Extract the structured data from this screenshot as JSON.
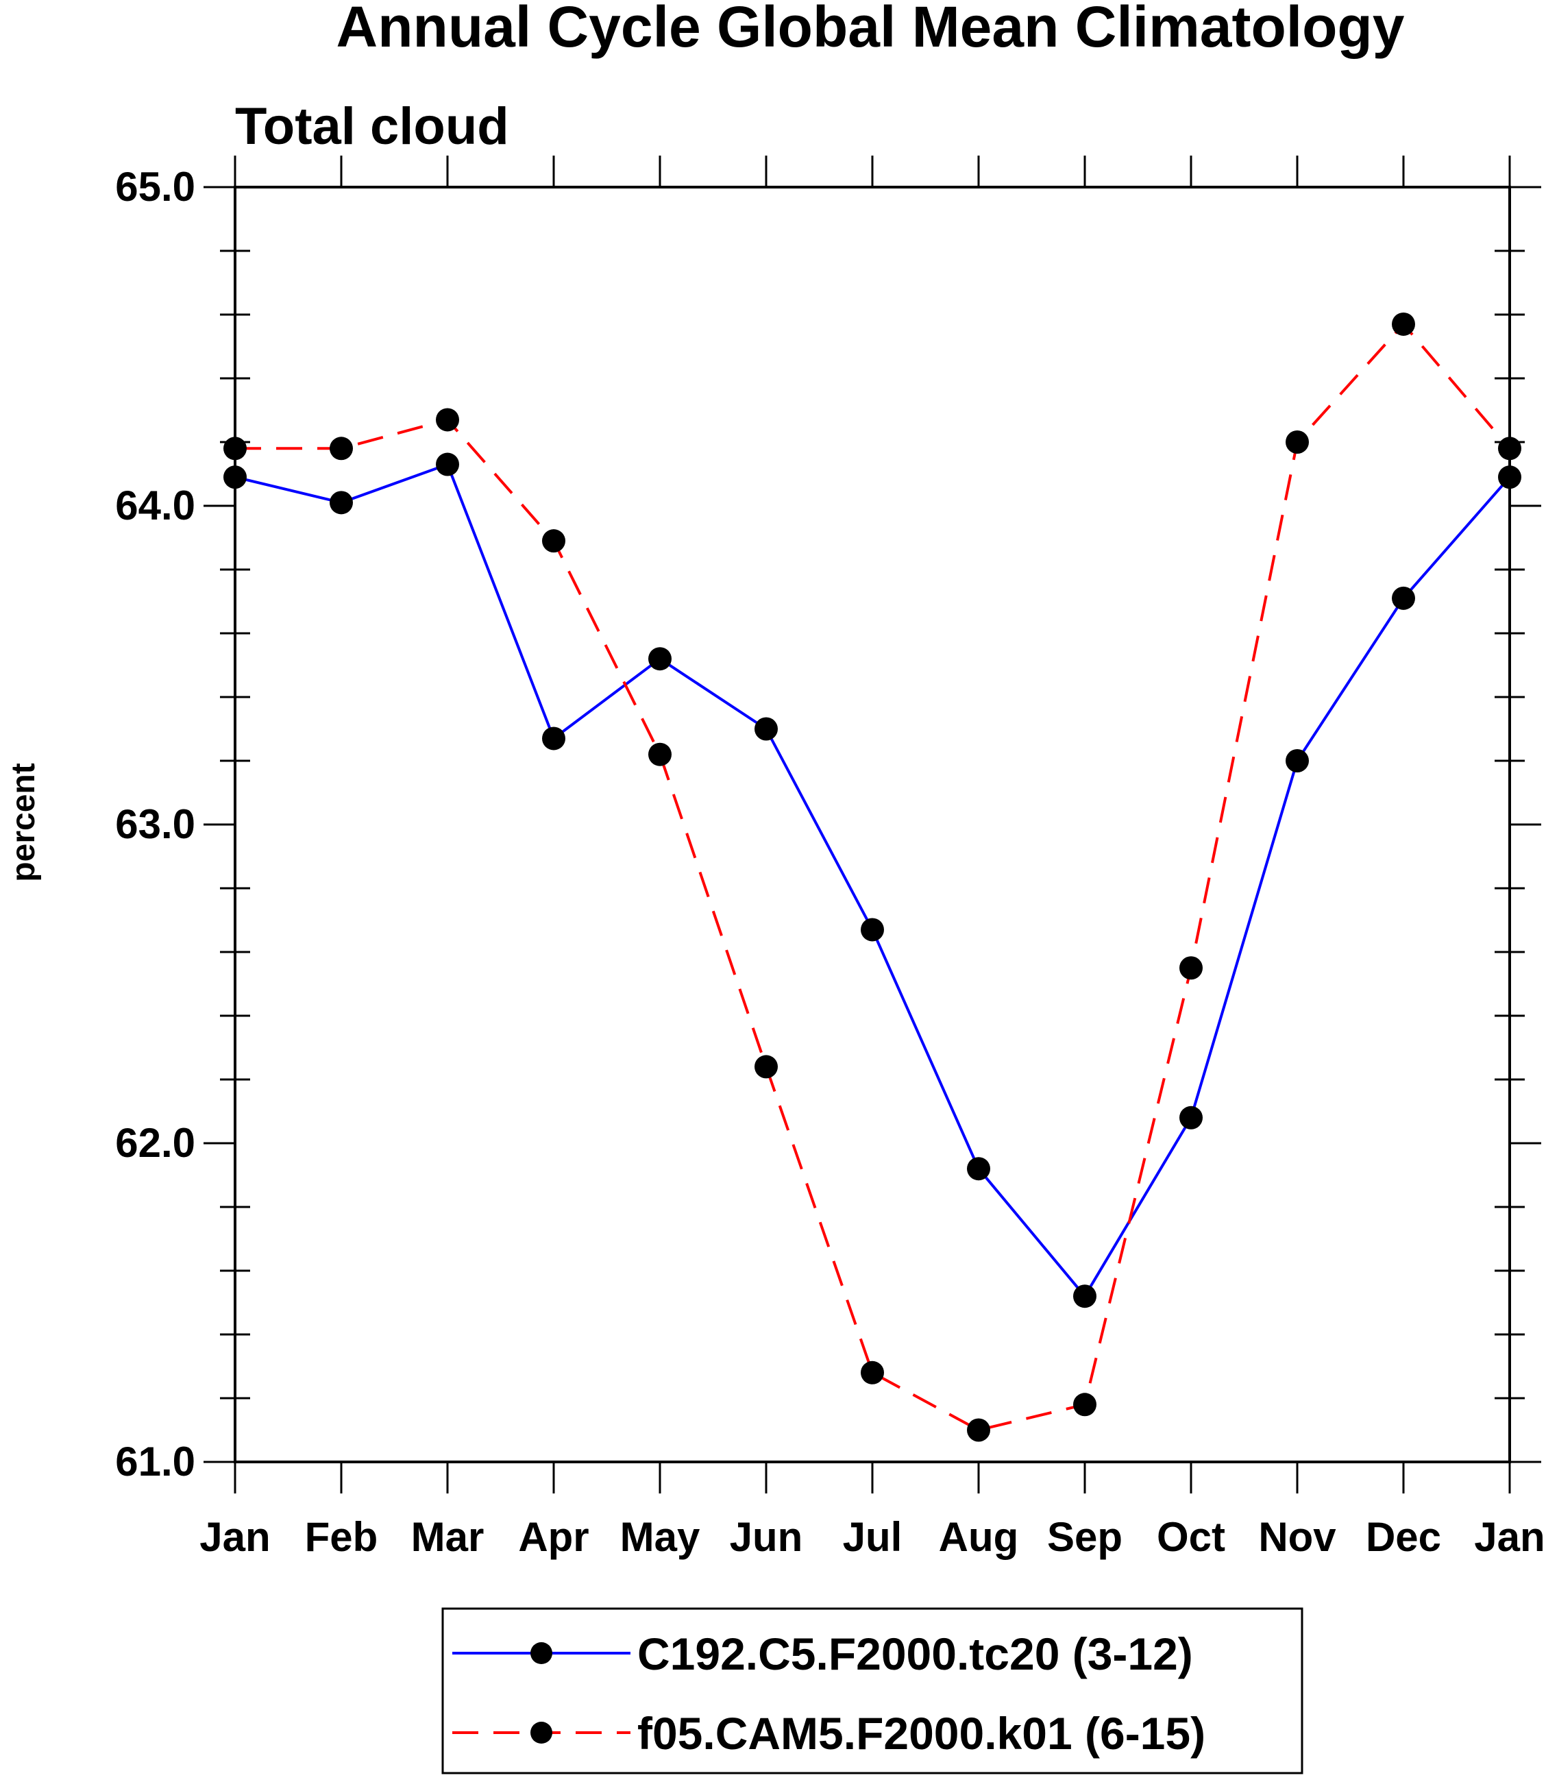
{
  "chart_data": {
    "type": "line",
    "title": "Annual Cycle Global Mean Climatology",
    "subtitle": "Total cloud",
    "xlabel": "",
    "ylabel": "percent",
    "categories": [
      "Jan",
      "Feb",
      "Mar",
      "Apr",
      "May",
      "Jun",
      "Jul",
      "Aug",
      "Sep",
      "Oct",
      "Nov",
      "Dec",
      "Jan"
    ],
    "ylim": [
      61.0,
      65.0
    ],
    "yticks": [
      "61.0",
      "62.0",
      "63.0",
      "64.0",
      "65.0"
    ],
    "grid": false,
    "legend_position": "bottom-center",
    "series": [
      {
        "name": "C192.C5.F2000.tc20 (3-12)",
        "color": "#0000ff",
        "line_style": "solid",
        "marker": "filled-circle",
        "values": [
          64.09,
          64.01,
          64.13,
          63.27,
          63.52,
          63.3,
          62.67,
          61.92,
          61.52,
          62.08,
          63.2,
          63.71,
          64.09
        ]
      },
      {
        "name": "f05.CAM5.F2000.k01 (6-15)",
        "color": "#ff0000",
        "line_style": "dashed",
        "marker": "filled-circle",
        "values": [
          64.18,
          64.18,
          64.27,
          63.89,
          63.22,
          62.24,
          61.28,
          61.1,
          61.18,
          62.55,
          64.2,
          64.57,
          64.18
        ]
      }
    ]
  }
}
